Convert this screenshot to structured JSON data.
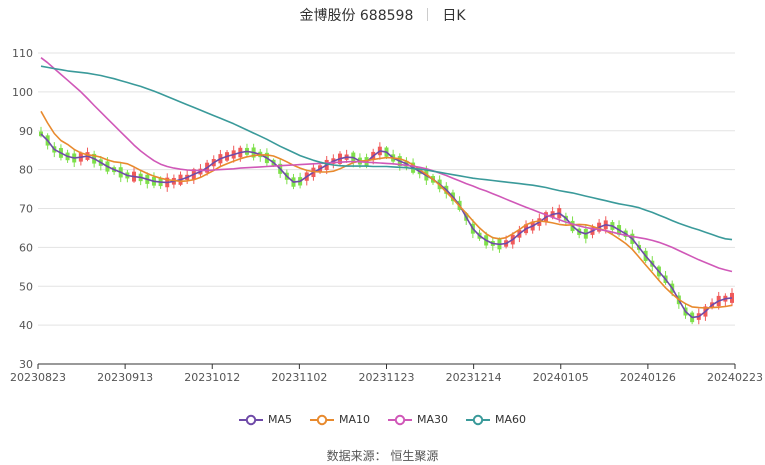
{
  "title": {
    "stock": "金博股份 688598",
    "period": "日K"
  },
  "source": "数据来源： 恒生聚源",
  "colors": {
    "up": "#f05a5a",
    "down": "#7ee04a",
    "grid": "#e3e3e3",
    "axis": "#555555"
  },
  "chart_data": {
    "type": "candlestick",
    "ylim": [
      30,
      110
    ],
    "yticks": [
      30,
      40,
      50,
      60,
      70,
      80,
      90,
      100,
      110
    ],
    "xtick_labels": [
      "20230823",
      "20230913",
      "20231012",
      "20231102",
      "20231123",
      "20231214",
      "20240105",
      "20240126",
      "20240223"
    ],
    "legend_position": "bottom",
    "series": [
      {
        "name": "MA5",
        "color": "#6f4aa8",
        "values": [
          89.2,
          87.5,
          85.2,
          84.3,
          83.4,
          83.0,
          83.2,
          83.5,
          82.8,
          81.8,
          80.8,
          80.0,
          79.3,
          78.5,
          78.2,
          78.0,
          77.5,
          77.0,
          76.8,
          76.7,
          77.0,
          77.4,
          78.0,
          78.8,
          79.5,
          80.5,
          81.8,
          82.8,
          83.4,
          83.9,
          84.4,
          84.7,
          84.4,
          83.9,
          83.0,
          81.8,
          80.2,
          78.3,
          76.8,
          77.0,
          78.2,
          79.3,
          80.2,
          81.2,
          82.2,
          82.8,
          83.2,
          83.1,
          82.2,
          82.0,
          83.5,
          84.8,
          84.5,
          83.0,
          82.2,
          81.5,
          80.5,
          79.5,
          78.5,
          77.5,
          76.2,
          74.8,
          73.0,
          70.8,
          67.8,
          64.8,
          63.0,
          61.8,
          61.0,
          60.8,
          61.0,
          62.0,
          63.5,
          64.8,
          65.5,
          66.5,
          67.8,
          68.5,
          68.8,
          67.5,
          65.5,
          64.0,
          63.5,
          64.2,
          65.2,
          65.8,
          65.5,
          64.5,
          63.5,
          62.2,
          60.0,
          57.8,
          55.8,
          53.8,
          51.8,
          49.5,
          46.5,
          43.5,
          42.0,
          42.2,
          43.5,
          45.2,
          46.2,
          46.8,
          47.0
        ]
      },
      {
        "name": "MA10",
        "color": "#e88a2e",
        "values": [
          95.0,
          92.0,
          89.3,
          87.5,
          86.5,
          85.2,
          84.3,
          83.8,
          83.6,
          83.2,
          82.5,
          82.0,
          81.8,
          81.5,
          80.7,
          79.8,
          79.0,
          78.3,
          77.8,
          77.4,
          77.2,
          77.0,
          77.1,
          77.4,
          78.0,
          78.9,
          79.8,
          80.8,
          81.5,
          82.2,
          82.8,
          83.3,
          83.6,
          83.8,
          83.8,
          83.5,
          82.8,
          82.0,
          81.1,
          80.4,
          79.8,
          79.5,
          79.4,
          79.4,
          79.6,
          80.2,
          81.0,
          81.8,
          82.2,
          82.3,
          82.6,
          82.9,
          83.1,
          83.0,
          82.8,
          82.2,
          81.2,
          80.0,
          78.8,
          77.5,
          76.0,
          74.2,
          72.5,
          70.6,
          68.8,
          66.8,
          65.0,
          63.5,
          62.5,
          62.2,
          62.5,
          63.5,
          64.6,
          65.8,
          66.5,
          66.8,
          66.6,
          66.3,
          65.9,
          65.7,
          65.8,
          65.9,
          65.8,
          65.4,
          64.8,
          64.3,
          63.3,
          62.2,
          61.0,
          59.5,
          57.5,
          55.5,
          53.5,
          51.5,
          49.6,
          48.0,
          46.6,
          45.5,
          44.7,
          44.5,
          44.4,
          44.5,
          44.6,
          44.8,
          45.1
        ]
      },
      {
        "name": "MA30",
        "color": "#d058b8",
        "values": [
          108.8,
          107.5,
          106.0,
          104.5,
          103.0,
          101.5,
          100.0,
          98.3,
          96.5,
          94.8,
          93.1,
          91.4,
          89.7,
          88.0,
          86.3,
          84.8,
          83.5,
          82.3,
          81.4,
          80.8,
          80.4,
          80.1,
          79.9,
          79.8,
          79.8,
          79.8,
          79.9,
          80.0,
          80.1,
          80.2,
          80.4,
          80.5,
          80.6,
          80.7,
          80.8,
          80.9,
          81.0,
          81.1,
          81.2,
          81.3,
          81.4,
          81.5,
          81.6,
          81.7,
          81.8,
          81.9,
          82.0,
          82.1,
          82.0,
          81.9,
          81.8,
          81.7,
          81.6,
          81.5,
          81.3,
          81.1,
          80.9,
          80.6,
          80.2,
          79.7,
          79.1,
          78.5,
          77.8,
          77.1,
          76.4,
          75.8,
          75.1,
          74.5,
          73.8,
          73.1,
          72.4,
          71.7,
          71.0,
          70.3,
          69.7,
          69.0,
          68.4,
          67.7,
          67.1,
          66.5,
          66.0,
          65.5,
          65.1,
          64.8,
          64.6,
          64.3,
          63.9,
          63.5,
          63.1,
          62.8,
          62.5,
          62.2,
          61.8,
          61.3,
          60.7,
          60.0,
          59.2,
          58.4,
          57.6,
          56.8,
          56.1,
          55.4,
          54.7,
          54.2,
          53.8
        ]
      },
      {
        "name": "MA60",
        "color": "#3a9a9a",
        "values": [
          106.6,
          106.3,
          106.0,
          105.7,
          105.4,
          105.2,
          105.0,
          104.8,
          104.5,
          104.2,
          103.8,
          103.4,
          102.9,
          102.4,
          101.9,
          101.4,
          100.8,
          100.2,
          99.5,
          98.8,
          98.1,
          97.4,
          96.7,
          96.0,
          95.3,
          94.6,
          93.9,
          93.2,
          92.5,
          91.8,
          91.0,
          90.2,
          89.4,
          88.6,
          87.8,
          86.9,
          86.0,
          85.2,
          84.4,
          83.6,
          83.0,
          82.4,
          81.9,
          81.5,
          81.2,
          81.0,
          80.9,
          80.9,
          80.9,
          80.9,
          80.8,
          80.8,
          80.8,
          80.7,
          80.6,
          80.5,
          80.3,
          80.1,
          79.9,
          79.6,
          79.3,
          79.0,
          78.7,
          78.4,
          78.1,
          77.8,
          77.6,
          77.4,
          77.2,
          77.0,
          76.8,
          76.6,
          76.4,
          76.2,
          76.0,
          75.7,
          75.4,
          75.0,
          74.6,
          74.3,
          74.0,
          73.6,
          73.2,
          72.8,
          72.4,
          72.0,
          71.6,
          71.2,
          70.9,
          70.6,
          70.2,
          69.6,
          69.0,
          68.3,
          67.6,
          66.9,
          66.2,
          65.6,
          65.0,
          64.5,
          63.9,
          63.3,
          62.7,
          62.2,
          62.0
        ]
      }
    ]
  }
}
